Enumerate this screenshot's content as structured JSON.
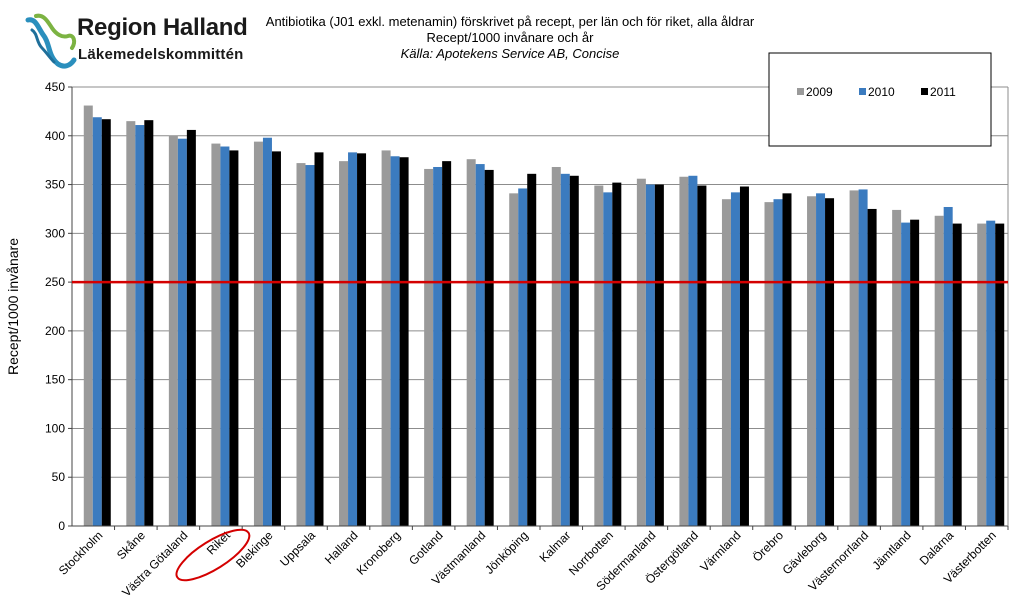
{
  "logo": {
    "title": "Region Halland",
    "subtitle": "Läkemedelskommittén"
  },
  "titles": {
    "line1": "Antibiotika  (J01 exkl.  metenamin) förskrivet på recept, per län och för riket, alla åldrar",
    "line2": "Recept/1000 invånare och år",
    "line3": "Källa: Apotekens Service AB, Concise"
  },
  "chart_data": {
    "type": "bar",
    "ylabel": "Recept/1000 invånare",
    "xlabel": "",
    "ylim": [
      0,
      450
    ],
    "yticks": [
      0,
      50,
      100,
      150,
      200,
      250,
      300,
      350,
      400,
      450
    ],
    "grid": true,
    "legend_position": "top-right",
    "reference_line": {
      "value": 250,
      "color": "#d40000"
    },
    "highlighted_category": "Riket",
    "categories": [
      "Stockholm",
      "Skåne",
      "Västra Götaland",
      "Riket",
      "Blekinge",
      "Uppsala",
      "Halland",
      "Kronoberg",
      "Gotland",
      "Västmanland",
      "Jönköping",
      "Kalmar",
      "Norrbotten",
      "Södermanland",
      "Östergötland",
      "Värmland",
      "Örebro",
      "Gävleborg",
      "Västernorrland",
      "Jämtland",
      "Dalarna",
      "Västerbotten"
    ],
    "series": [
      {
        "name": "2009",
        "color": "#9a9a9a",
        "values": [
          431,
          415,
          400,
          392,
          394,
          372,
          374,
          385,
          366,
          376,
          341,
          368,
          349,
          356,
          358,
          335,
          332,
          338,
          344,
          324,
          318,
          310
        ]
      },
      {
        "name": "2010",
        "color": "#3b7bbf",
        "values": [
          419,
          411,
          397,
          389,
          398,
          370,
          383,
          379,
          368,
          371,
          346,
          361,
          342,
          350,
          359,
          342,
          335,
          341,
          345,
          311,
          327,
          313
        ]
      },
      {
        "name": "2011",
        "color": "#000000",
        "values": [
          417,
          416,
          406,
          385,
          384,
          383,
          382,
          378,
          374,
          365,
          361,
          359,
          352,
          350,
          349,
          348,
          341,
          336,
          325,
          314,
          310,
          310
        ]
      }
    ]
  }
}
